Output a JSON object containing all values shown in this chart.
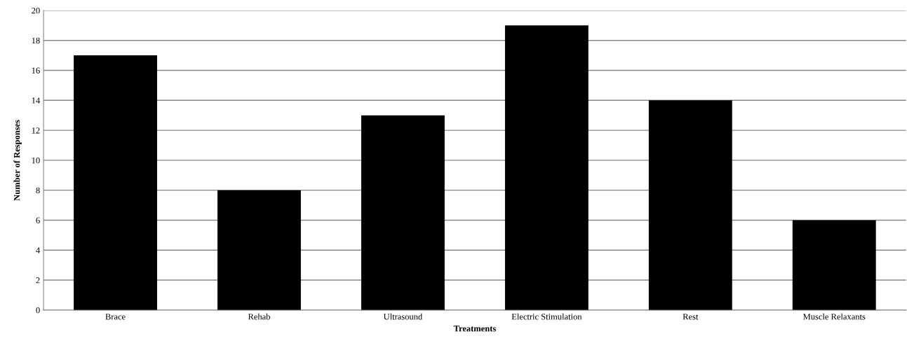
{
  "chart_data": {
    "type": "bar",
    "xlabel": "Treatments",
    "ylabel": "Number of Responses",
    "categories": [
      "Brace",
      "Rehab",
      "Ultrasound",
      "Electric Stimulation",
      "Rest",
      "Muscle Relaxants"
    ],
    "values": [
      17,
      8,
      13,
      19,
      14,
      6
    ],
    "color": "#000000",
    "ylim": [
      0,
      20
    ],
    "yticks": [
      0,
      2,
      4,
      6,
      8,
      10,
      12,
      14,
      16,
      18,
      20
    ],
    "grid": "y",
    "legend": false
  }
}
